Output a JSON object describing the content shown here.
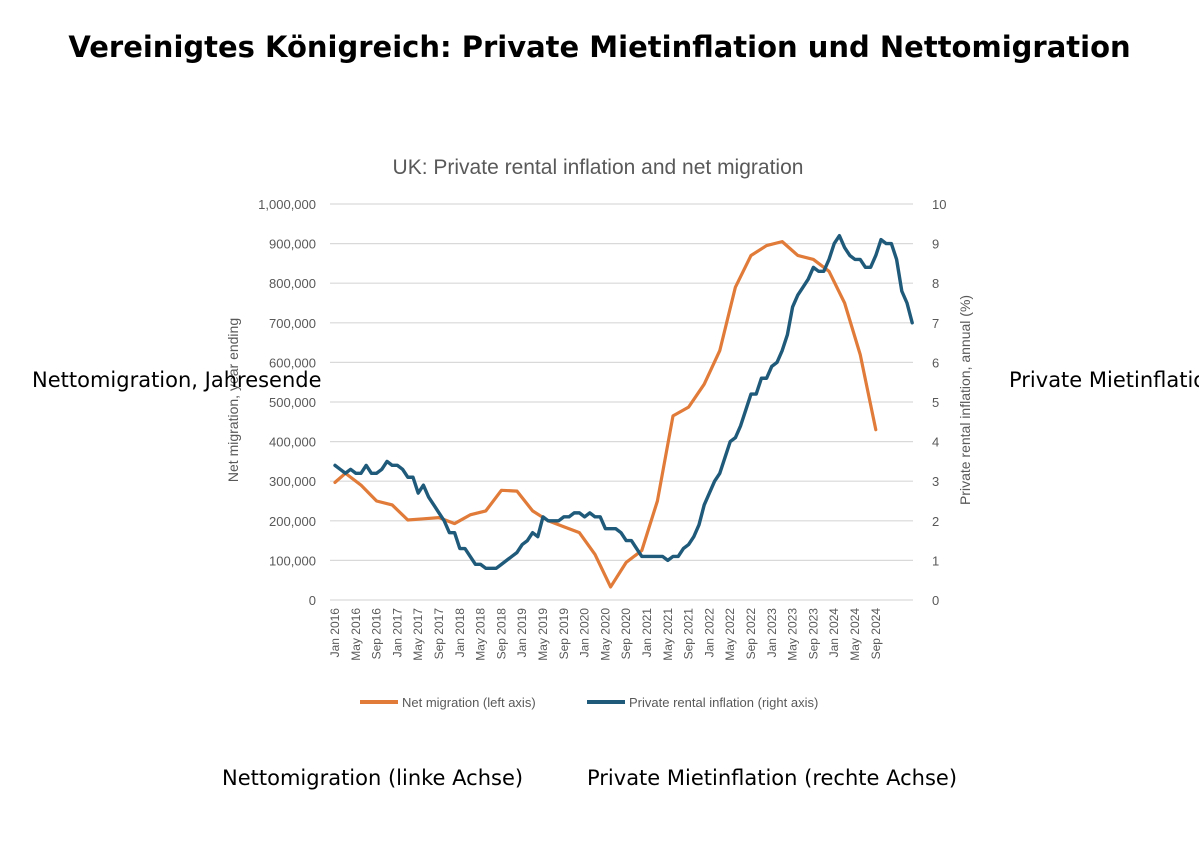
{
  "overlay": {
    "title": "Vereinigtes Königreich: Private Mietinflation und Nettomigration",
    "left_axis_label": "Nettomigration, Jahresende",
    "right_axis_label": "Private Mietinflation (rechte Achse)",
    "legend_left": "Nettomigration (linke Achse)",
    "legend_right": "Private Mietinflation (rechte Achse)"
  },
  "chart_data": {
    "type": "line",
    "title": "UK: Private rental inflation and net migration",
    "ylabel_left": "Net migration, year ending",
    "ylabel_right": "Private rental inflation, annual (%)",
    "ylim_left": [
      0,
      1000000
    ],
    "ylim_right": [
      0,
      10
    ],
    "yticks_left": [
      "0",
      "100,000",
      "200,000",
      "300,000",
      "400,000",
      "500,000",
      "600,000",
      "700,000",
      "800,000",
      "900,000",
      "1,000,000"
    ],
    "yticks_right": [
      "0",
      "1",
      "2",
      "3",
      "4",
      "5",
      "6",
      "7",
      "8",
      "9",
      "10"
    ],
    "x_tick_labels": [
      "Jan 2016",
      "May 2016",
      "Sep 2016",
      "Jan 2017",
      "May 2017",
      "Sep 2017",
      "Jan 2018",
      "May 2018",
      "Sep 2018",
      "Jan 2019",
      "May 2019",
      "Sep 2019",
      "Jan 2020",
      "May 2020",
      "Sep 2020",
      "Jan 2021",
      "May 2021",
      "Sep 2021",
      "Jan 2022",
      "May 2022",
      "Sep 2022",
      "Jan 2023",
      "May 2023",
      "Sep 2023",
      "Jan 2024",
      "May 2024",
      "Sep 2024"
    ],
    "grid": true,
    "legend_position": "bottom",
    "colors": {
      "net_migration": "#e07b39",
      "rental_inflation": "#1f5a7a",
      "grid": "#d9d9d9",
      "text": "#595959"
    },
    "series": [
      {
        "name": "Net migration (left axis)",
        "axis": "left",
        "x": [
          "Jan 2016",
          "Mar 2016",
          "Jun 2016",
          "Sep 2016",
          "Dec 2016",
          "Mar 2017",
          "Jun 2017",
          "Sep 2017",
          "Dec 2017",
          "Mar 2018",
          "Jun 2018",
          "Sep 2018",
          "Dec 2018",
          "Mar 2019",
          "Jun 2019",
          "Sep 2019",
          "Dec 2019",
          "Mar 2020",
          "Jun 2020",
          "Sep 2020",
          "Dec 2020",
          "Mar 2021",
          "Jun 2021",
          "Sep 2021",
          "Dec 2021",
          "Mar 2022",
          "Jun 2022",
          "Sep 2022",
          "Dec 2022",
          "Mar 2023",
          "Jun 2023",
          "Sep 2023",
          "Dec 2023",
          "Mar 2024",
          "Jun 2024",
          "Sep 2024",
          "Dec 2024"
        ],
        "values": [
          297000,
          320000,
          290000,
          250000,
          240000,
          202000,
          205000,
          208000,
          193000,
          215000,
          225000,
          277000,
          275000,
          225000,
          200000,
          185000,
          170000,
          115000,
          33000,
          95000,
          125000,
          250000,
          465000,
          487000,
          545000,
          630000,
          790000,
          870000,
          895000,
          905000,
          870000,
          860000,
          830000,
          750000,
          620000,
          430000,
          null
        ],
        "x_index": [
          0,
          2,
          5,
          8,
          11,
          14,
          17,
          20,
          23,
          26,
          29,
          32,
          35,
          38,
          41,
          44,
          47,
          50,
          53,
          56,
          59,
          62,
          65,
          68,
          71,
          74,
          77,
          80,
          83,
          86,
          89,
          92,
          95,
          98,
          101,
          104,
          107
        ]
      },
      {
        "name": "Private rental inflation (right axis)",
        "axis": "right",
        "x_start": "Jan 2016",
        "frequency": "monthly",
        "values": [
          3.4,
          3.3,
          3.2,
          3.3,
          3.2,
          3.2,
          3.4,
          3.2,
          3.2,
          3.3,
          3.5,
          3.4,
          3.4,
          3.3,
          3.1,
          3.1,
          2.7,
          2.9,
          2.6,
          2.4,
          2.2,
          2.0,
          1.7,
          1.7,
          1.3,
          1.3,
          1.1,
          0.9,
          0.9,
          0.8,
          0.8,
          0.8,
          0.9,
          1.0,
          1.1,
          1.2,
          1.4,
          1.5,
          1.7,
          1.6,
          2.1,
          2.0,
          2.0,
          2.0,
          2.1,
          2.1,
          2.2,
          2.2,
          2.1,
          2.2,
          2.1,
          2.1,
          1.8,
          1.8,
          1.8,
          1.7,
          1.5,
          1.5,
          1.3,
          1.1,
          1.1,
          1.1,
          1.1,
          1.1,
          1.0,
          1.1,
          1.1,
          1.3,
          1.4,
          1.6,
          1.9,
          2.4,
          2.7,
          3.0,
          3.2,
          3.6,
          4.0,
          4.1,
          4.4,
          4.8,
          5.2,
          5.2,
          5.6,
          5.6,
          5.9,
          6.0,
          6.3,
          6.7,
          7.4,
          7.7,
          7.9,
          8.1,
          8.4,
          8.3,
          8.3,
          8.6,
          9.0,
          9.2,
          8.9,
          8.7,
          8.6,
          8.6,
          8.4,
          8.4,
          8.7,
          9.1,
          9.0,
          9.0,
          8.6,
          7.8,
          7.5,
          7.0
        ]
      }
    ]
  }
}
